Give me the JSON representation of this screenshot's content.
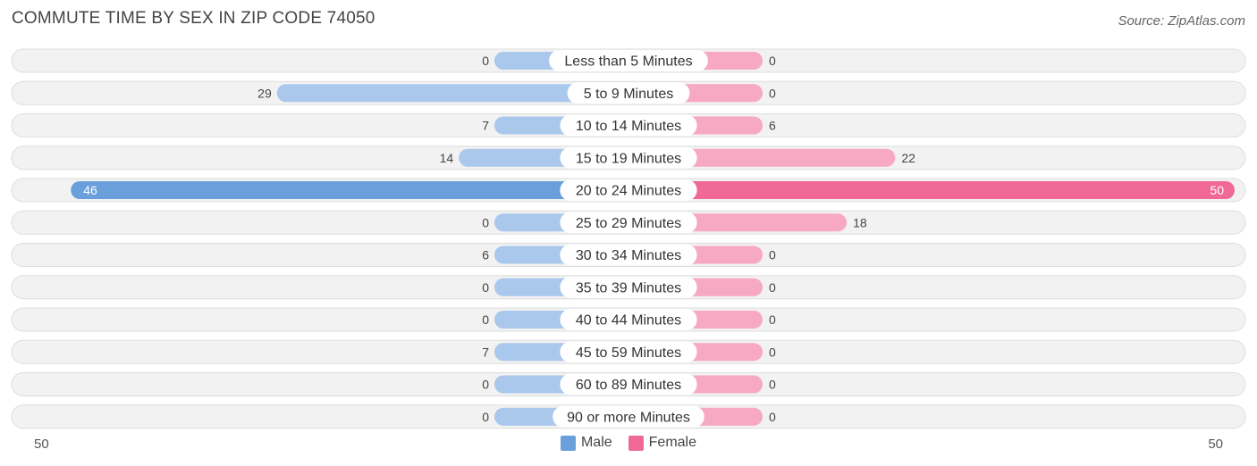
{
  "header": {
    "title": "COMMUTE TIME BY SEX IN ZIP CODE 74050",
    "source": "Source: ZipAtlas.com"
  },
  "axis": {
    "left_label": "50",
    "right_label": "50"
  },
  "legend": {
    "male_label": "Male",
    "female_label": "Female"
  },
  "colors": {
    "male_strong": "#6a9fdc",
    "male_light": "#a9c8ec",
    "female_strong": "#f06896",
    "female_light": "#f7a8c2",
    "row_bg": "#efefef",
    "row_border": "#dddddd"
  },
  "chart_data": {
    "type": "bar",
    "orientation": "diverging-horizontal",
    "title": "COMMUTE TIME BY SEX IN ZIP CODE 74050",
    "categories": [
      "Less than 5 Minutes",
      "5 to 9 Minutes",
      "10 to 14 Minutes",
      "15 to 19 Minutes",
      "20 to 24 Minutes",
      "25 to 29 Minutes",
      "30 to 34 Minutes",
      "35 to 39 Minutes",
      "40 to 44 Minutes",
      "45 to 59 Minutes",
      "60 to 89 Minutes",
      "90 or more Minutes"
    ],
    "series": [
      {
        "name": "Male",
        "values": [
          0,
          29,
          7,
          14,
          46,
          0,
          6,
          0,
          0,
          7,
          0,
          0
        ]
      },
      {
        "name": "Female",
        "values": [
          0,
          0,
          6,
          22,
          50,
          18,
          0,
          0,
          0,
          0,
          0,
          0
        ]
      }
    ],
    "xlim": [
      -50,
      50
    ],
    "legend_position": "bottom-center",
    "grid": false
  }
}
